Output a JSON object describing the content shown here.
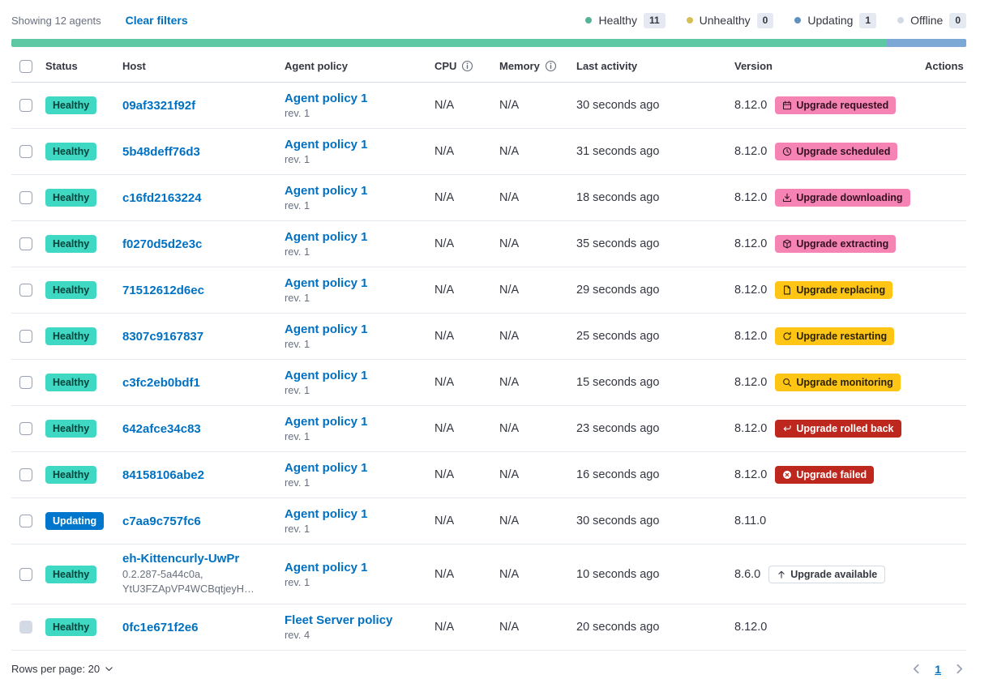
{
  "toolbar": {
    "showing_text": "Showing 12 agents",
    "clear_filters_label": "Clear filters"
  },
  "legend": {
    "items": [
      {
        "label": "Healthy",
        "count": "11",
        "dot_color": "#54B399"
      },
      {
        "label": "Unhealthy",
        "count": "0",
        "dot_color": "#D6BF57"
      },
      {
        "label": "Updating",
        "count": "1",
        "dot_color": "#6092C0"
      },
      {
        "label": "Offline",
        "count": "0",
        "dot_color": "#D3DAE6"
      }
    ]
  },
  "health_bar": {
    "segments": [
      {
        "status": "Healthy",
        "fraction": 0.9167,
        "color": "#5EC8A5"
      },
      {
        "status": "Updating",
        "fraction": 0.0833,
        "color": "#7CA8D6"
      }
    ]
  },
  "table": {
    "header": {
      "status": "Status",
      "host": "Host",
      "policy": "Agent policy",
      "cpu": "CPU",
      "memory": "Memory",
      "last_activity": "Last activity",
      "version": "Version",
      "actions": "Actions"
    },
    "rows": [
      {
        "status": {
          "label": "Healthy",
          "variant": "healthy"
        },
        "checkbox_disabled": false,
        "host": {
          "name": "09af3321f92f",
          "sub": []
        },
        "policy": {
          "name": "Agent policy 1",
          "rev": "rev. 1",
          "locked": false
        },
        "cpu": "N/A",
        "memory": "N/A",
        "last_activity": "30 seconds ago",
        "version": {
          "number": "8.12.0",
          "info": false
        },
        "upgrade": {
          "label": "Upgrade requested",
          "variant": "pink",
          "icon": "calendar-icon",
          "info": true
        }
      },
      {
        "status": {
          "label": "Healthy",
          "variant": "healthy"
        },
        "checkbox_disabled": false,
        "host": {
          "name": "5b48deff76d3",
          "sub": []
        },
        "policy": {
          "name": "Agent policy 1",
          "rev": "rev. 1",
          "locked": false
        },
        "cpu": "N/A",
        "memory": "N/A",
        "last_activity": "31 seconds ago",
        "version": {
          "number": "8.12.0",
          "info": false
        },
        "upgrade": {
          "label": "Upgrade scheduled",
          "variant": "pink",
          "icon": "clock-icon",
          "info": true
        }
      },
      {
        "status": {
          "label": "Healthy",
          "variant": "healthy"
        },
        "checkbox_disabled": false,
        "host": {
          "name": "c16fd2163224",
          "sub": []
        },
        "policy": {
          "name": "Agent policy 1",
          "rev": "rev. 1",
          "locked": false
        },
        "cpu": "N/A",
        "memory": "N/A",
        "last_activity": "18 seconds ago",
        "version": {
          "number": "8.12.0",
          "info": false
        },
        "upgrade": {
          "label": "Upgrade downloading",
          "variant": "pink",
          "icon": "download-icon",
          "info": true
        }
      },
      {
        "status": {
          "label": "Healthy",
          "variant": "healthy"
        },
        "checkbox_disabled": false,
        "host": {
          "name": "f0270d5d2e3c",
          "sub": []
        },
        "policy": {
          "name": "Agent policy 1",
          "rev": "rev. 1",
          "locked": false
        },
        "cpu": "N/A",
        "memory": "N/A",
        "last_activity": "35 seconds ago",
        "version": {
          "number": "8.12.0",
          "info": false
        },
        "upgrade": {
          "label": "Upgrade extracting",
          "variant": "pink",
          "icon": "package-icon",
          "info": true
        }
      },
      {
        "status": {
          "label": "Healthy",
          "variant": "healthy"
        },
        "checkbox_disabled": false,
        "host": {
          "name": "71512612d6ec",
          "sub": []
        },
        "policy": {
          "name": "Agent policy 1",
          "rev": "rev. 1",
          "locked": false
        },
        "cpu": "N/A",
        "memory": "N/A",
        "last_activity": "29 seconds ago",
        "version": {
          "number": "8.12.0",
          "info": false
        },
        "upgrade": {
          "label": "Upgrade replacing",
          "variant": "yellow",
          "icon": "document-icon",
          "info": true
        }
      },
      {
        "status": {
          "label": "Healthy",
          "variant": "healthy"
        },
        "checkbox_disabled": false,
        "host": {
          "name": "8307c9167837",
          "sub": []
        },
        "policy": {
          "name": "Agent policy 1",
          "rev": "rev. 1",
          "locked": false
        },
        "cpu": "N/A",
        "memory": "N/A",
        "last_activity": "25 seconds ago",
        "version": {
          "number": "8.12.0",
          "info": false
        },
        "upgrade": {
          "label": "Upgrade restarting",
          "variant": "yellow",
          "icon": "refresh-icon",
          "info": true
        }
      },
      {
        "status": {
          "label": "Healthy",
          "variant": "healthy"
        },
        "checkbox_disabled": false,
        "host": {
          "name": "c3fc2eb0bdf1",
          "sub": []
        },
        "policy": {
          "name": "Agent policy 1",
          "rev": "rev. 1",
          "locked": false
        },
        "cpu": "N/A",
        "memory": "N/A",
        "last_activity": "15 seconds ago",
        "version": {
          "number": "8.12.0",
          "info": false
        },
        "upgrade": {
          "label": "Upgrade monitoring",
          "variant": "yellow",
          "icon": "inspect-icon",
          "info": true
        }
      },
      {
        "status": {
          "label": "Healthy",
          "variant": "healthy"
        },
        "checkbox_disabled": false,
        "host": {
          "name": "642afce34c83",
          "sub": []
        },
        "policy": {
          "name": "Agent policy 1",
          "rev": "rev. 1",
          "locked": false
        },
        "cpu": "N/A",
        "memory": "N/A",
        "last_activity": "23 seconds ago",
        "version": {
          "number": "8.12.0",
          "info": false
        },
        "upgrade": {
          "label": "Upgrade rolled back",
          "variant": "red",
          "icon": "return-icon",
          "info": true
        }
      },
      {
        "status": {
          "label": "Healthy",
          "variant": "healthy"
        },
        "checkbox_disabled": false,
        "host": {
          "name": "84158106abe2",
          "sub": []
        },
        "policy": {
          "name": "Agent policy 1",
          "rev": "rev. 1",
          "locked": false
        },
        "cpu": "N/A",
        "memory": "N/A",
        "last_activity": "16 seconds ago",
        "version": {
          "number": "8.12.0",
          "info": false
        },
        "upgrade": {
          "label": "Upgrade failed",
          "variant": "red",
          "icon": "error-icon",
          "info": true
        }
      },
      {
        "status": {
          "label": "Updating",
          "variant": "updating"
        },
        "checkbox_disabled": false,
        "host": {
          "name": "c7aa9c757fc6",
          "sub": []
        },
        "policy": {
          "name": "Agent policy 1",
          "rev": "rev. 1",
          "locked": false
        },
        "cpu": "N/A",
        "memory": "N/A",
        "last_activity": "30 seconds ago",
        "version": {
          "number": "8.11.0",
          "info": true
        },
        "upgrade": null
      },
      {
        "status": {
          "label": "Healthy",
          "variant": "healthy"
        },
        "checkbox_disabled": false,
        "host": {
          "name": "eh-Kittencurly-UwPr",
          "sub": [
            "0.2.287-5a44c0a,",
            "YtU3FZApVP4WCBqtjeyH…"
          ]
        },
        "policy": {
          "name": "Agent policy 1",
          "rev": "rev. 1",
          "locked": false
        },
        "cpu": "N/A",
        "memory": "N/A",
        "last_activity": "10 seconds ago",
        "version": {
          "number": "8.6.0",
          "info": false
        },
        "upgrade": {
          "label": "Upgrade available",
          "variant": "outline",
          "icon": "arrow-up-icon",
          "info": false
        }
      },
      {
        "status": {
          "label": "Healthy",
          "variant": "healthy"
        },
        "checkbox_disabled": true,
        "host": {
          "name": "0fc1e671f2e6",
          "sub": []
        },
        "policy": {
          "name": "Fleet Server policy",
          "rev": "rev. 4",
          "locked": true
        },
        "cpu": "N/A",
        "memory": "N/A",
        "last_activity": "20 seconds ago",
        "version": {
          "number": "8.12.0",
          "info": false
        },
        "upgrade": null
      }
    ]
  },
  "footer": {
    "rows_per_page_label": "Rows per page: 20",
    "page": "1"
  },
  "colors": {
    "link_blue": "#0071C2",
    "healthy_badge": "#3ED8C3",
    "updating_badge": "#0077CC",
    "upgrade_pink": "#F584B5",
    "upgrade_yellow": "#FEC514",
    "upgrade_red": "#BD271E",
    "bar_green": "#5EC8A5",
    "bar_blue": "#7CA8D6",
    "muted_text": "#69707D"
  }
}
